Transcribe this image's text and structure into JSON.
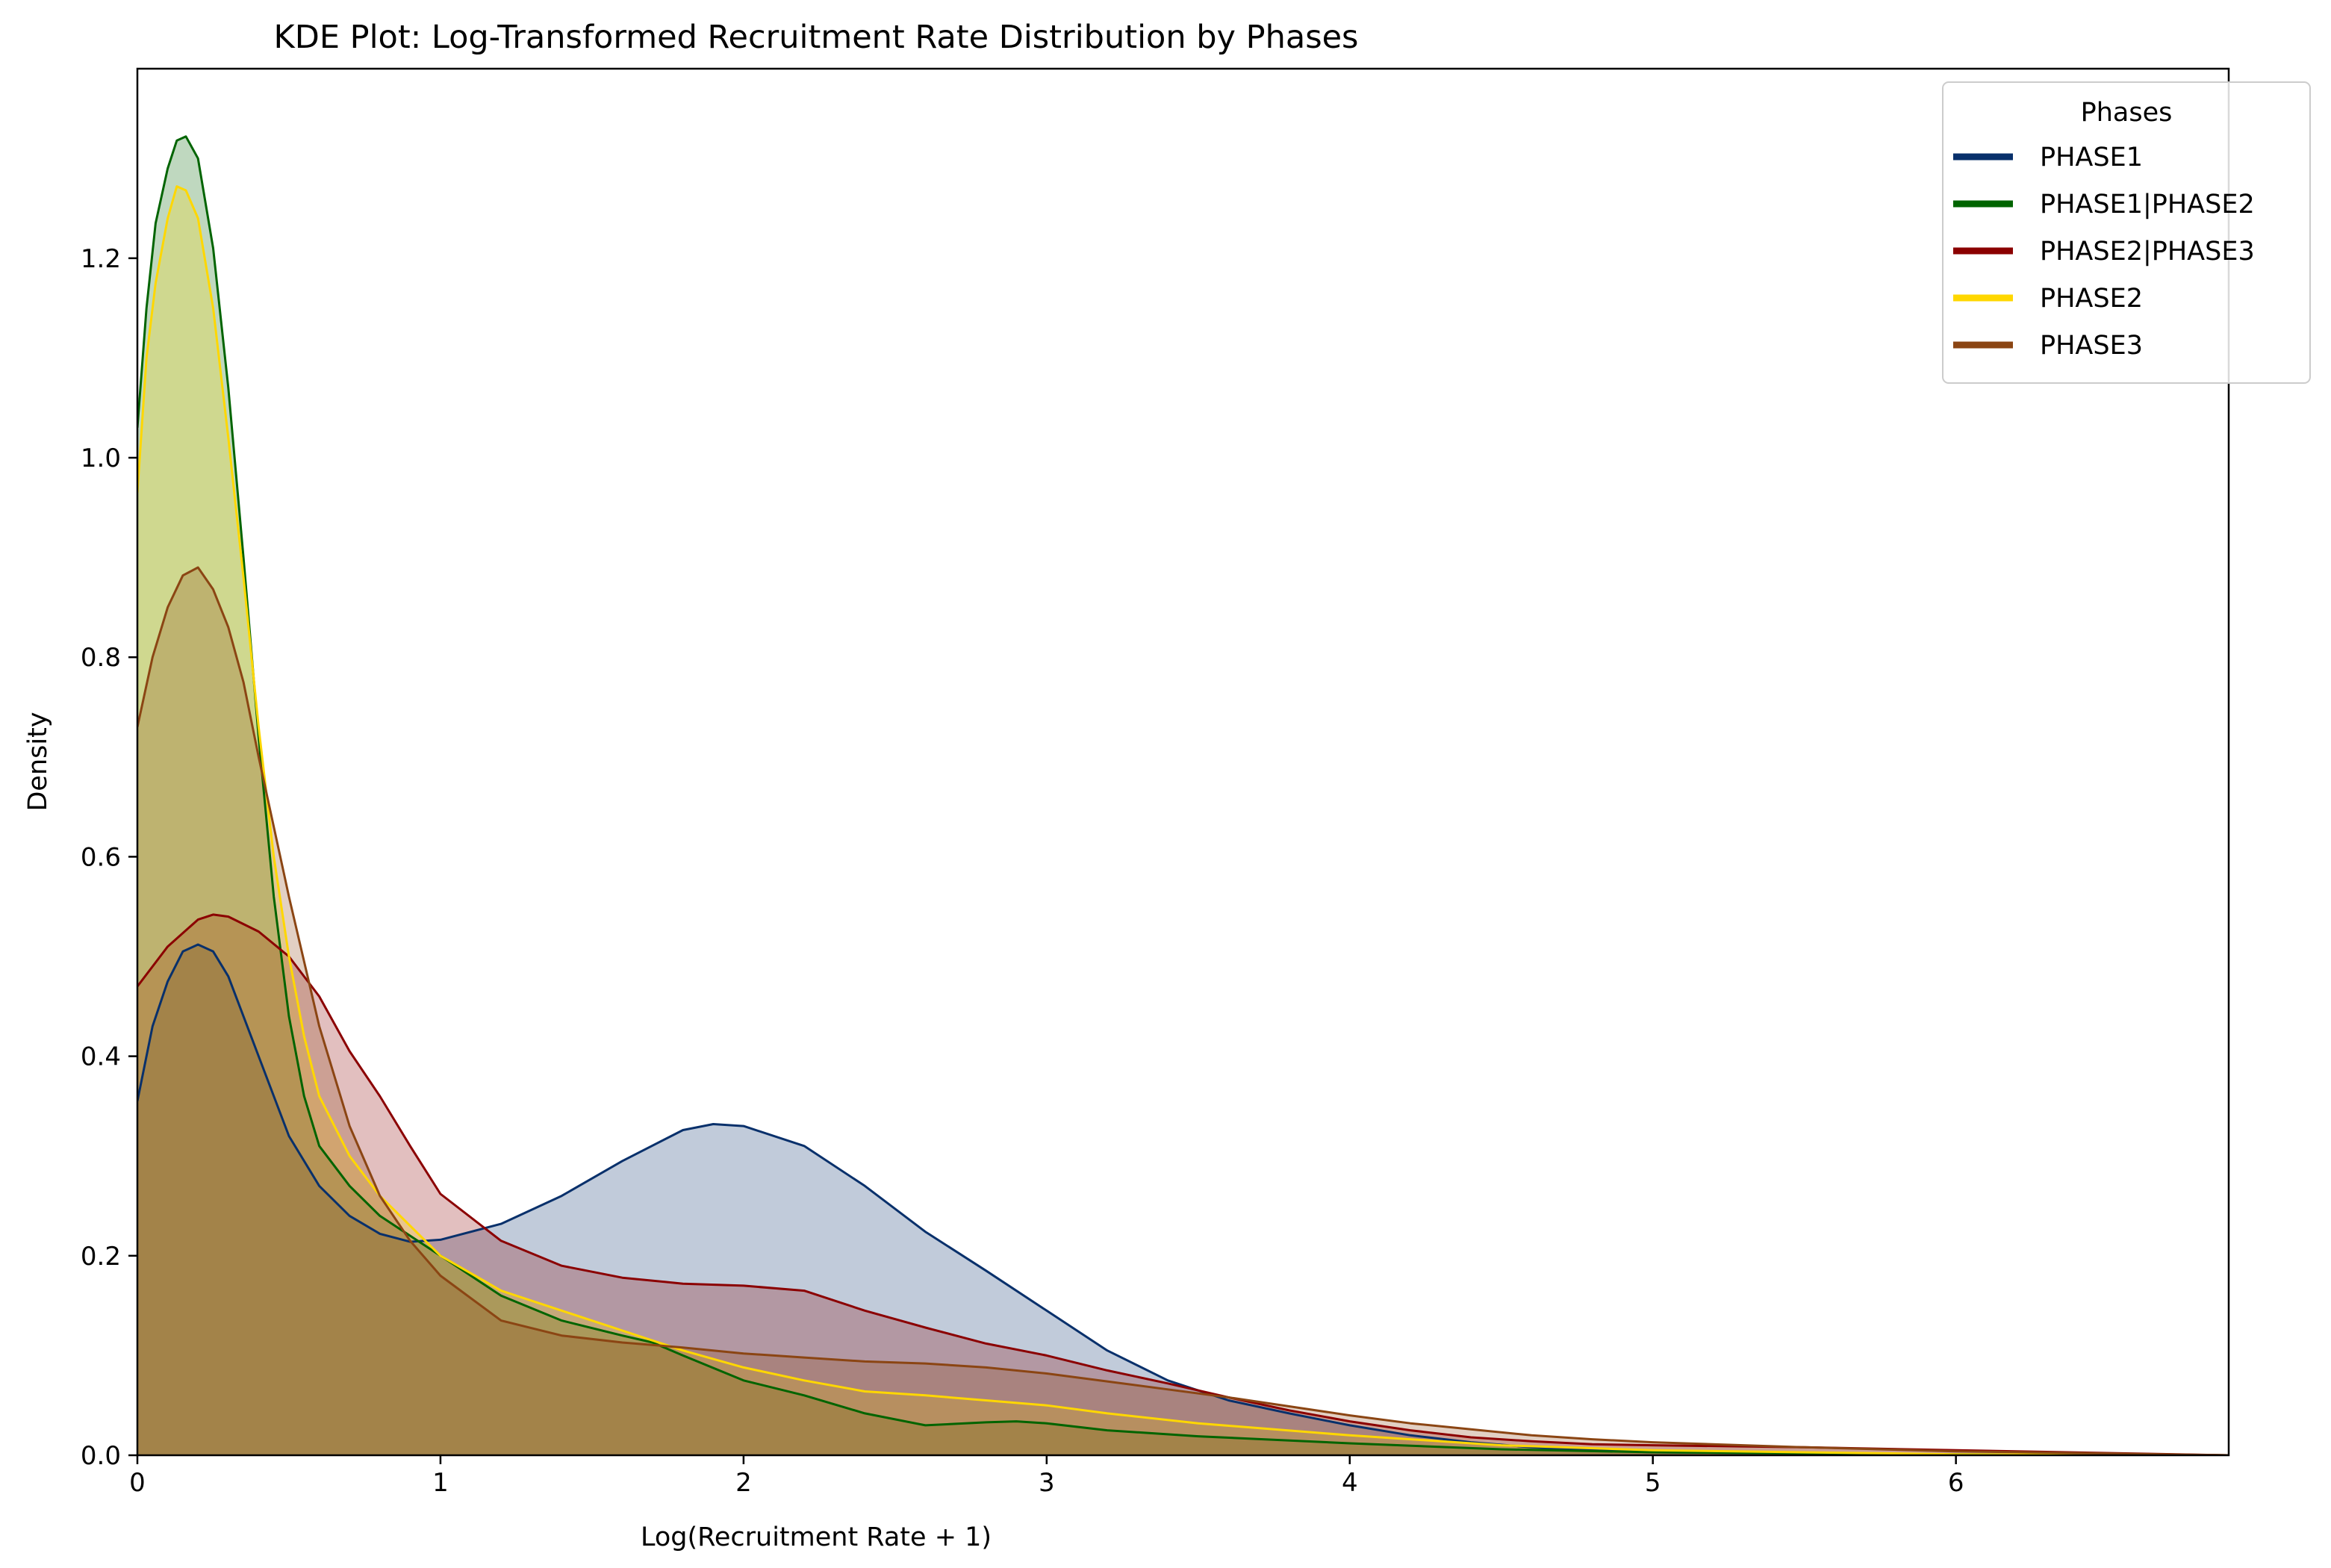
{
  "chart_data": {
    "type": "area",
    "title": "KDE Plot: Log-Transformed Recruitment Rate Distribution by Phases",
    "xlabel": "Log(Recruitment Rate + 1)",
    "ylabel": "Density",
    "xlim": [
      0,
      6.9
    ],
    "ylim": [
      0,
      1.39
    ],
    "xticks": [
      0,
      1,
      2,
      3,
      4,
      5,
      6
    ],
    "yticks": [
      0.0,
      0.2,
      0.4,
      0.6,
      0.8,
      1.0,
      1.2
    ],
    "grid": false,
    "legend": {
      "title": "Phases",
      "placement": "top-right"
    },
    "series": [
      {
        "name": "PHASE1",
        "color": "#08306b",
        "points": [
          [
            0,
            0.355
          ],
          [
            0.05,
            0.43
          ],
          [
            0.1,
            0.475
          ],
          [
            0.15,
            0.505
          ],
          [
            0.2,
            0.512
          ],
          [
            0.25,
            0.505
          ],
          [
            0.3,
            0.48
          ],
          [
            0.4,
            0.4
          ],
          [
            0.5,
            0.32
          ],
          [
            0.6,
            0.27
          ],
          [
            0.7,
            0.24
          ],
          [
            0.8,
            0.222
          ],
          [
            0.9,
            0.214
          ],
          [
            1.0,
            0.216
          ],
          [
            1.2,
            0.232
          ],
          [
            1.4,
            0.26
          ],
          [
            1.6,
            0.295
          ],
          [
            1.8,
            0.326
          ],
          [
            1.9,
            0.332
          ],
          [
            2.0,
            0.33
          ],
          [
            2.2,
            0.31
          ],
          [
            2.4,
            0.27
          ],
          [
            2.6,
            0.224
          ],
          [
            2.8,
            0.185
          ],
          [
            3.0,
            0.145
          ],
          [
            3.2,
            0.105
          ],
          [
            3.4,
            0.075
          ],
          [
            3.6,
            0.055
          ],
          [
            3.8,
            0.042
          ],
          [
            4.0,
            0.03
          ],
          [
            4.2,
            0.02
          ],
          [
            4.4,
            0.013
          ],
          [
            4.6,
            0.008
          ],
          [
            4.8,
            0.005
          ],
          [
            5.0,
            0.003
          ],
          [
            5.5,
            0.002
          ],
          [
            6.0,
            0.001
          ],
          [
            6.9,
            0.0
          ]
        ]
      },
      {
        "name": "PHASE1|PHASE2",
        "color": "#006400",
        "points": [
          [
            0,
            1.03
          ],
          [
            0.03,
            1.15
          ],
          [
            0.06,
            1.235
          ],
          [
            0.1,
            1.29
          ],
          [
            0.13,
            1.318
          ],
          [
            0.16,
            1.322
          ],
          [
            0.2,
            1.3
          ],
          [
            0.25,
            1.21
          ],
          [
            0.3,
            1.07
          ],
          [
            0.35,
            0.9
          ],
          [
            0.4,
            0.72
          ],
          [
            0.45,
            0.56
          ],
          [
            0.5,
            0.44
          ],
          [
            0.55,
            0.36
          ],
          [
            0.6,
            0.31
          ],
          [
            0.7,
            0.27
          ],
          [
            0.8,
            0.24
          ],
          [
            1.0,
            0.2
          ],
          [
            1.2,
            0.16
          ],
          [
            1.4,
            0.135
          ],
          [
            1.6,
            0.12
          ],
          [
            1.7,
            0.113
          ],
          [
            1.8,
            0.1
          ],
          [
            2.0,
            0.075
          ],
          [
            2.2,
            0.06
          ],
          [
            2.4,
            0.042
          ],
          [
            2.6,
            0.03
          ],
          [
            2.8,
            0.033
          ],
          [
            2.9,
            0.034
          ],
          [
            3.0,
            0.032
          ],
          [
            3.2,
            0.025
          ],
          [
            3.5,
            0.019
          ],
          [
            4.0,
            0.012
          ],
          [
            4.5,
            0.006
          ],
          [
            5.0,
            0.003
          ],
          [
            6.0,
            0.001
          ],
          [
            6.9,
            0.0
          ]
        ]
      },
      {
        "name": "PHASE2|PHASE3",
        "color": "#8b0000",
        "points": [
          [
            0,
            0.47
          ],
          [
            0.1,
            0.51
          ],
          [
            0.2,
            0.537
          ],
          [
            0.25,
            0.542
          ],
          [
            0.3,
            0.54
          ],
          [
            0.4,
            0.525
          ],
          [
            0.5,
            0.5
          ],
          [
            0.6,
            0.46
          ],
          [
            0.7,
            0.405
          ],
          [
            0.8,
            0.36
          ],
          [
            0.9,
            0.31
          ],
          [
            1.0,
            0.262
          ],
          [
            1.2,
            0.215
          ],
          [
            1.4,
            0.19
          ],
          [
            1.6,
            0.178
          ],
          [
            1.8,
            0.172
          ],
          [
            2.0,
            0.17
          ],
          [
            2.2,
            0.165
          ],
          [
            2.4,
            0.145
          ],
          [
            2.6,
            0.128
          ],
          [
            2.8,
            0.112
          ],
          [
            3.0,
            0.1
          ],
          [
            3.2,
            0.085
          ],
          [
            3.4,
            0.072
          ],
          [
            3.6,
            0.058
          ],
          [
            3.8,
            0.045
          ],
          [
            4.0,
            0.034
          ],
          [
            4.2,
            0.025
          ],
          [
            4.4,
            0.018
          ],
          [
            4.6,
            0.014
          ],
          [
            4.8,
            0.011
          ],
          [
            5.0,
            0.01
          ],
          [
            5.5,
            0.008
          ],
          [
            6.0,
            0.005
          ],
          [
            6.9,
            0.0
          ]
        ]
      },
      {
        "name": "PHASE2",
        "color": "#ffd700",
        "points": [
          [
            0,
            0.965
          ],
          [
            0.03,
            1.1
          ],
          [
            0.06,
            1.175
          ],
          [
            0.1,
            1.24
          ],
          [
            0.13,
            1.272
          ],
          [
            0.16,
            1.268
          ],
          [
            0.2,
            1.24
          ],
          [
            0.25,
            1.15
          ],
          [
            0.3,
            1.02
          ],
          [
            0.35,
            0.88
          ],
          [
            0.4,
            0.73
          ],
          [
            0.45,
            0.6
          ],
          [
            0.5,
            0.5
          ],
          [
            0.55,
            0.42
          ],
          [
            0.6,
            0.36
          ],
          [
            0.7,
            0.3
          ],
          [
            0.8,
            0.26
          ],
          [
            1.0,
            0.2
          ],
          [
            1.2,
            0.165
          ],
          [
            1.4,
            0.145
          ],
          [
            1.6,
            0.125
          ],
          [
            1.8,
            0.105
          ],
          [
            2.0,
            0.088
          ],
          [
            2.2,
            0.075
          ],
          [
            2.4,
            0.064
          ],
          [
            2.6,
            0.06
          ],
          [
            2.8,
            0.055
          ],
          [
            3.0,
            0.05
          ],
          [
            3.2,
            0.042
          ],
          [
            3.5,
            0.032
          ],
          [
            4.0,
            0.02
          ],
          [
            4.5,
            0.01
          ],
          [
            5.0,
            0.005
          ],
          [
            6.0,
            0.001
          ],
          [
            6.9,
            0.0
          ]
        ]
      },
      {
        "name": "PHASE3",
        "color": "#8b4513",
        "points": [
          [
            0,
            0.73
          ],
          [
            0.05,
            0.8
          ],
          [
            0.1,
            0.85
          ],
          [
            0.15,
            0.882
          ],
          [
            0.2,
            0.89
          ],
          [
            0.25,
            0.868
          ],
          [
            0.3,
            0.83
          ],
          [
            0.35,
            0.775
          ],
          [
            0.4,
            0.7
          ],
          [
            0.5,
            0.56
          ],
          [
            0.6,
            0.43
          ],
          [
            0.7,
            0.33
          ],
          [
            0.8,
            0.26
          ],
          [
            0.9,
            0.215
          ],
          [
            1.0,
            0.18
          ],
          [
            1.2,
            0.135
          ],
          [
            1.4,
            0.12
          ],
          [
            1.6,
            0.113
          ],
          [
            1.8,
            0.108
          ],
          [
            2.0,
            0.102
          ],
          [
            2.2,
            0.098
          ],
          [
            2.4,
            0.094
          ],
          [
            2.6,
            0.092
          ],
          [
            2.8,
            0.088
          ],
          [
            3.0,
            0.082
          ],
          [
            3.2,
            0.074
          ],
          [
            3.4,
            0.066
          ],
          [
            3.6,
            0.058
          ],
          [
            3.8,
            0.049
          ],
          [
            4.0,
            0.04
          ],
          [
            4.2,
            0.032
          ],
          [
            4.4,
            0.026
          ],
          [
            4.6,
            0.02
          ],
          [
            4.8,
            0.016
          ],
          [
            5.0,
            0.013
          ],
          [
            5.5,
            0.008
          ],
          [
            6.0,
            0.004
          ],
          [
            6.9,
            0.0
          ]
        ]
      }
    ]
  }
}
